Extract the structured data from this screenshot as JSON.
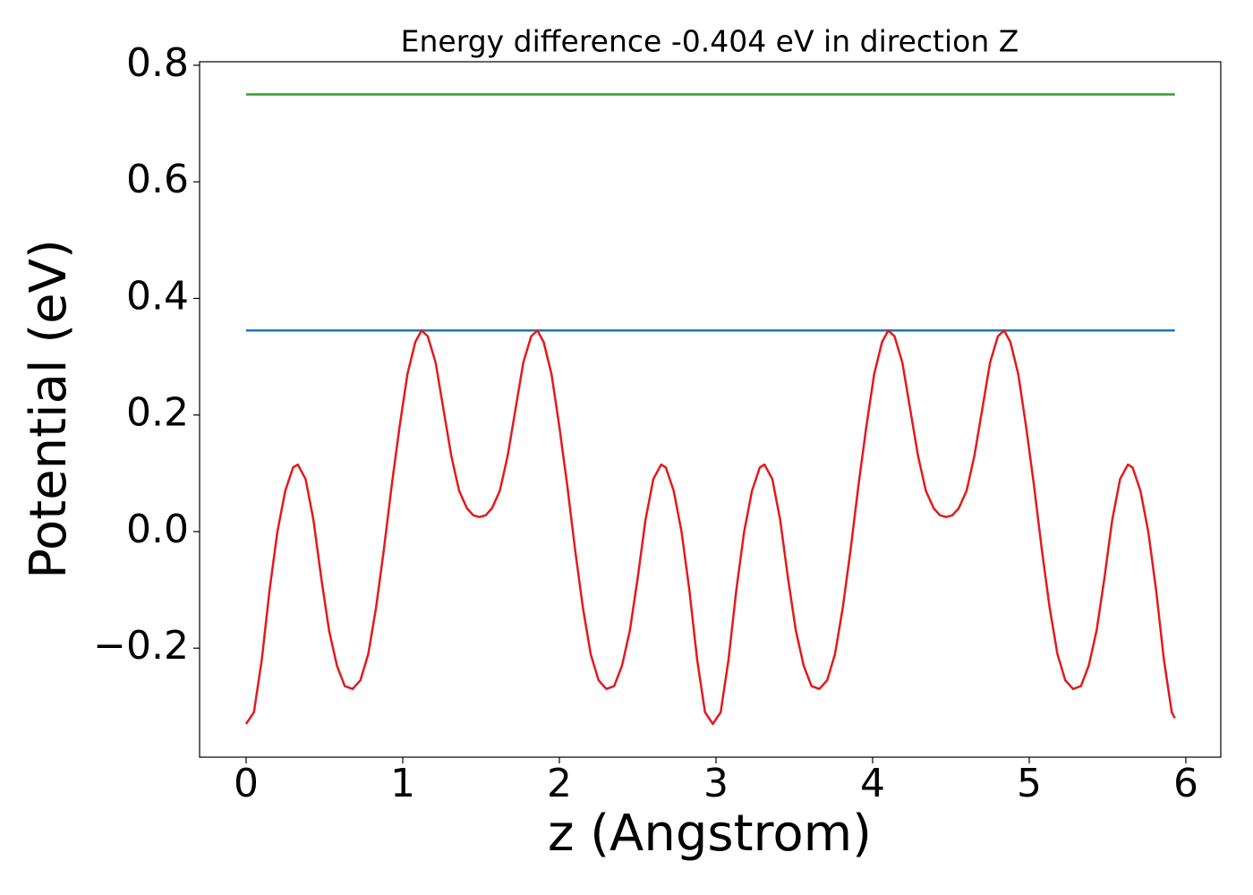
{
  "chart_data": {
    "type": "line",
    "title": "Energy difference -0.404 eV in direction Z",
    "x_label": "z (Angstrom)",
    "y_label": "Potential (eV)",
    "xlim": [
      -0.297,
      6.223
    ],
    "ylim": [
      -0.387,
      0.806
    ],
    "xticks": [
      0,
      1,
      2,
      3,
      4,
      5,
      6
    ],
    "yticks": [
      {
        "value": -0.2,
        "label": "−0.2"
      },
      {
        "value": 0,
        "label": "0.0"
      },
      0.2,
      0.4,
      0.6,
      0.8
    ],
    "grid": false,
    "series": [
      {
        "color": "#2ca02c",
        "x": [
          0,
          5.93
        ],
        "values": [
          0.75,
          0.75
        ]
      },
      {
        "color": "#1f77b4",
        "x": [
          0,
          5.93
        ],
        "values": [
          0.345,
          0.345
        ]
      },
      {
        "color": "#e31a1c",
        "x": [
          0,
          0.05,
          0.1,
          0.15,
          0.2,
          0.25,
          0.3,
          0.33,
          0.38,
          0.43,
          0.48,
          0.53,
          0.58,
          0.63,
          0.68,
          0.73,
          0.78,
          0.83,
          0.88,
          0.93,
          0.98,
          1.03,
          1.08,
          1.12,
          1.16,
          1.21,
          1.26,
          1.31,
          1.36,
          1.41,
          1.45,
          1.49,
          1.53,
          1.57,
          1.62,
          1.67,
          1.72,
          1.77,
          1.82,
          1.86,
          1.9,
          1.95,
          2.0,
          2.05,
          2.1,
          2.15,
          2.2,
          2.25,
          2.3,
          2.35,
          2.4,
          2.45,
          2.5,
          2.55,
          2.6,
          2.65,
          2.68,
          2.73,
          2.78,
          2.83,
          2.88,
          2.93,
          2.98,
          3.03,
          3.08,
          3.13,
          3.18,
          3.23,
          3.28,
          3.31,
          3.36,
          3.41,
          3.46,
          3.51,
          3.56,
          3.61,
          3.66,
          3.71,
          3.76,
          3.81,
          3.86,
          3.91,
          3.96,
          4.01,
          4.06,
          4.1,
          4.14,
          4.19,
          4.24,
          4.29,
          4.34,
          4.39,
          4.43,
          4.47,
          4.51,
          4.55,
          4.6,
          4.65,
          4.7,
          4.75,
          4.8,
          4.84,
          4.88,
          4.93,
          4.98,
          5.03,
          5.08,
          5.13,
          5.18,
          5.23,
          5.28,
          5.33,
          5.38,
          5.43,
          5.48,
          5.53,
          5.58,
          5.63,
          5.66,
          5.71,
          5.76,
          5.81,
          5.86,
          5.91,
          5.93
        ],
        "values": [
          -0.33,
          -0.31,
          -0.22,
          -0.1,
          0.0,
          0.07,
          0.11,
          0.115,
          0.09,
          0.02,
          -0.08,
          -0.17,
          -0.23,
          -0.265,
          -0.27,
          -0.255,
          -0.21,
          -0.13,
          -0.03,
          0.08,
          0.18,
          0.27,
          0.325,
          0.345,
          0.335,
          0.29,
          0.21,
          0.13,
          0.07,
          0.04,
          0.028,
          0.025,
          0.028,
          0.04,
          0.07,
          0.13,
          0.21,
          0.29,
          0.335,
          0.345,
          0.325,
          0.27,
          0.18,
          0.08,
          -0.03,
          -0.13,
          -0.21,
          -0.255,
          -0.27,
          -0.265,
          -0.23,
          -0.17,
          -0.08,
          0.02,
          0.09,
          0.115,
          0.11,
          0.07,
          0.0,
          -0.1,
          -0.22,
          -0.31,
          -0.33,
          -0.31,
          -0.22,
          -0.1,
          0.0,
          0.07,
          0.11,
          0.115,
          0.09,
          0.02,
          -0.08,
          -0.17,
          -0.23,
          -0.265,
          -0.27,
          -0.255,
          -0.21,
          -0.13,
          -0.03,
          0.08,
          0.18,
          0.27,
          0.325,
          0.345,
          0.335,
          0.29,
          0.21,
          0.13,
          0.07,
          0.04,
          0.028,
          0.025,
          0.028,
          0.04,
          0.07,
          0.13,
          0.21,
          0.29,
          0.335,
          0.345,
          0.325,
          0.27,
          0.18,
          0.08,
          -0.03,
          -0.13,
          -0.21,
          -0.255,
          -0.27,
          -0.265,
          -0.23,
          -0.17,
          -0.08,
          0.02,
          0.09,
          0.115,
          0.11,
          0.07,
          0.0,
          -0.1,
          -0.22,
          -0.31,
          -0.32
        ]
      }
    ]
  }
}
